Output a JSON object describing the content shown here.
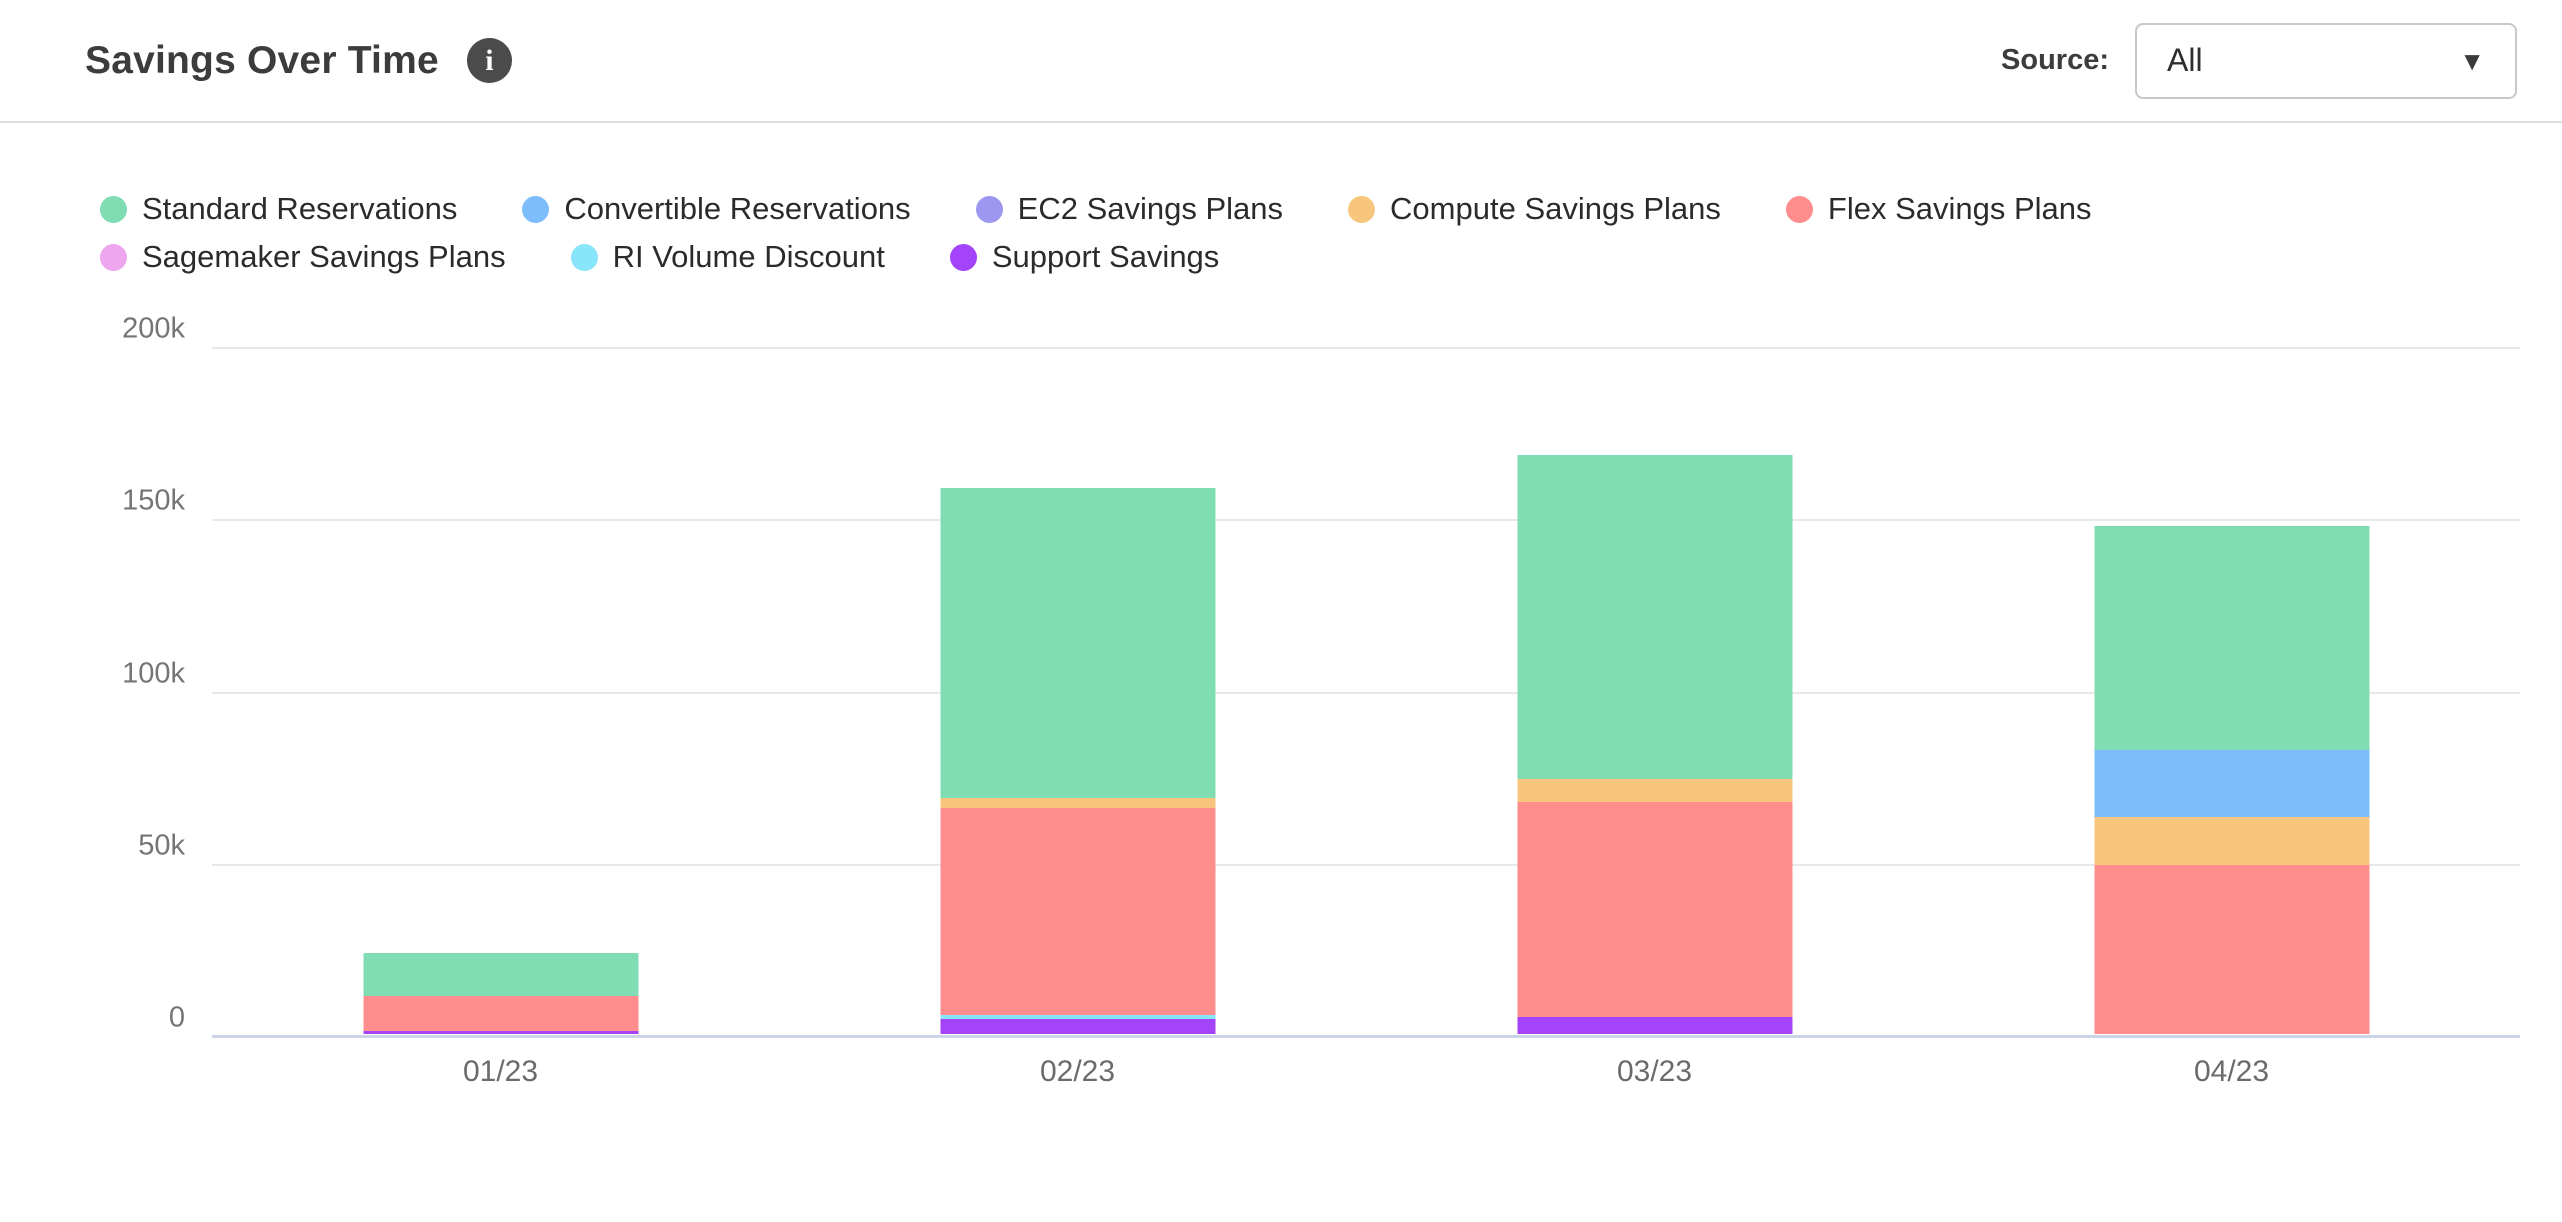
{
  "header": {
    "title": "Savings Over Time"
  },
  "icons": {
    "info": "i",
    "dropdown_caret": "▼"
  },
  "source": {
    "label": "Source:",
    "value": "All"
  },
  "chart_data": {
    "type": "bar",
    "stacked": true,
    "title": "Savings Over Time",
    "categories": [
      "01/23",
      "02/23",
      "03/23",
      "04/23"
    ],
    "value_unit": "k (thousands)",
    "series": [
      {
        "name": "Standard Reservations",
        "color": "#7FDCB3",
        "values": [
          12.5,
          90,
          94,
          65
        ]
      },
      {
        "name": "Convertible Reservations",
        "color": "#7EBDFC",
        "values": [
          0,
          0,
          0,
          19.5
        ]
      },
      {
        "name": "EC2 Savings Plans",
        "color": "#9D97F0",
        "values": [
          0,
          0,
          0,
          0
        ]
      },
      {
        "name": "Compute Savings Plans",
        "color": "#F8C57D",
        "values": [
          0,
          3,
          6.5,
          14
        ]
      },
      {
        "name": "Flex Savings Plans",
        "color": "#FF8D8D",
        "values": [
          10,
          60,
          62.5,
          49
        ]
      },
      {
        "name": "Sagemaker Savings Plans",
        "color": "#EEA6EE",
        "values": [
          0,
          0,
          0,
          0
        ]
      },
      {
        "name": "RI Volume Discount",
        "color": "#89E5FA",
        "values": [
          0,
          1,
          0,
          0
        ]
      },
      {
        "name": "Support Savings",
        "color": "#A444FA",
        "values": [
          1,
          4.5,
          5,
          0
        ]
      }
    ],
    "stack_order_bottom_to_top": [
      "Support Savings",
      "RI Volume Discount",
      "Sagemaker Savings Plans",
      "Flex Savings Plans",
      "Compute Savings Plans",
      "EC2 Savings Plans",
      "Convertible Reservations",
      "Standard Reservations"
    ],
    "totals": [
      23.5,
      158.5,
      168,
      147.5
    ],
    "yticks": [
      {
        "label": "0",
        "value": 0
      },
      {
        "label": "50k",
        "value": 50
      },
      {
        "label": "100k",
        "value": 100
      },
      {
        "label": "150k",
        "value": 150
      },
      {
        "label": "200k",
        "value": 200
      }
    ],
    "ylim": [
      0,
      200
    ],
    "xlabel": "",
    "ylabel": "",
    "grid": true,
    "legend_position": "top",
    "colors": {
      "gridline": "#E8E8E8",
      "baseline": "#CDD4E8",
      "tick_text": "#757575",
      "xlabel_text": "#6B6B6B"
    }
  }
}
